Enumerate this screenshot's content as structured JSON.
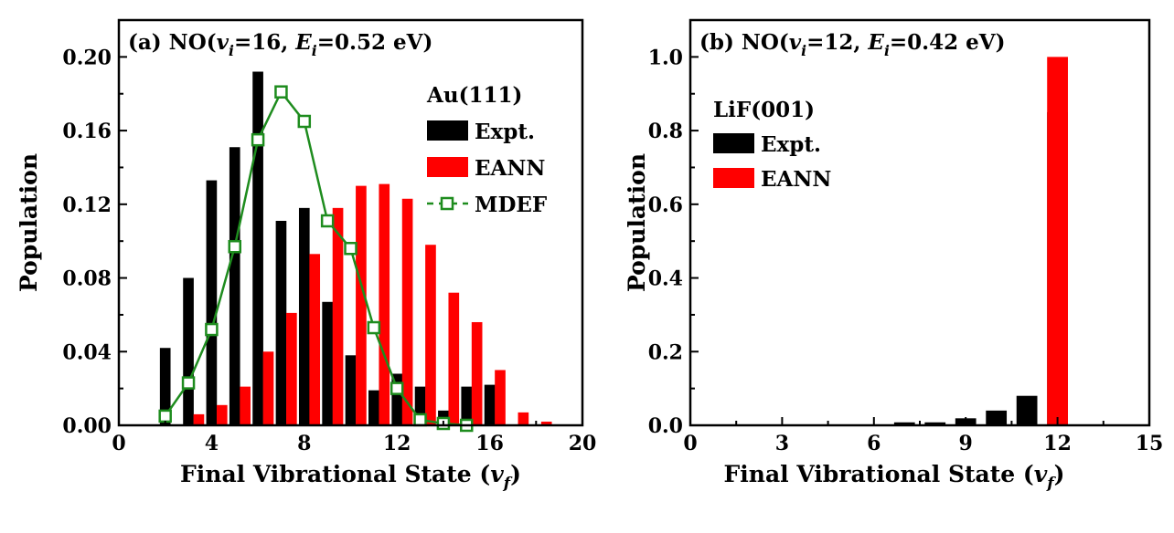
{
  "chart_data": [
    {
      "type": "bar",
      "panel": "(a)",
      "title_parts": [
        "(a) NO(",
        "v",
        "i",
        "=16, ",
        "E",
        "i",
        "=0.52 eV)"
      ],
      "xlabel_parts": [
        "Final Vibrational State (",
        "v",
        "f",
        ")"
      ],
      "ylabel": "Population",
      "xlim": [
        0,
        20
      ],
      "ylim": [
        0,
        0.22
      ],
      "xticks": [
        "0",
        "4",
        "8",
        "12",
        "16",
        "20"
      ],
      "yticks": [
        "0.00",
        "0.04",
        "0.08",
        "0.12",
        "0.16",
        "0.20"
      ],
      "legend_title": "Au(111)",
      "legend_placement": "top-right",
      "series": [
        {
          "name": "Expt.",
          "kind": "bar",
          "color": "#000000",
          "x": [
            2,
            3,
            4,
            5,
            6,
            7,
            8,
            9,
            10,
            11,
            12,
            13,
            14,
            15,
            16
          ],
          "values": [
            0.042,
            0.08,
            0.133,
            0.151,
            0.192,
            0.111,
            0.118,
            0.067,
            0.038,
            0.019,
            0.028,
            0.021,
            0.008,
            0.021,
            0.022
          ]
        },
        {
          "name": "EANN",
          "kind": "bar",
          "color": "#ff0000",
          "x": [
            3,
            4,
            5,
            6,
            7,
            8,
            9,
            10,
            11,
            12,
            13,
            14,
            15,
            16,
            17,
            18
          ],
          "values": [
            0.006,
            0.011,
            0.021,
            0.04,
            0.061,
            0.093,
            0.118,
            0.13,
            0.131,
            0.123,
            0.098,
            0.072,
            0.056,
            0.03,
            0.007,
            0.002
          ]
        },
        {
          "name": "MDEF",
          "kind": "line",
          "color": "#1e8c1e",
          "x": [
            2,
            3,
            4,
            5,
            6,
            7,
            8,
            9,
            10,
            11,
            12,
            13,
            14,
            15
          ],
          "values": [
            0.005,
            0.023,
            0.052,
            0.097,
            0.155,
            0.181,
            0.165,
            0.111,
            0.096,
            0.053,
            0.02,
            0.003,
            0.001,
            0.0
          ]
        }
      ]
    },
    {
      "type": "bar",
      "panel": "(b)",
      "title_parts": [
        "(b) NO(",
        "v",
        "i",
        "=12, ",
        "E",
        "i",
        "=0.42 eV)"
      ],
      "xlabel_parts": [
        "Final Vibrational State (",
        "v",
        "f",
        ")"
      ],
      "ylabel": "Population",
      "xlim": [
        0,
        15
      ],
      "ylim": [
        0,
        1.1
      ],
      "xticks": [
        "0",
        "3",
        "6",
        "9",
        "12",
        "15"
      ],
      "yticks": [
        "0.0",
        "0.2",
        "0.4",
        "0.6",
        "0.8",
        "1.0"
      ],
      "legend_title": "LiF(001)",
      "legend_placement": "top-left",
      "series": [
        {
          "name": "Expt.",
          "kind": "bar",
          "color": "#000000",
          "x": [
            7,
            8,
            9,
            10,
            11,
            12
          ],
          "values": [
            0.008,
            0.008,
            0.019,
            0.04,
            0.08,
            0.85
          ]
        },
        {
          "name": "EANN",
          "kind": "bar",
          "color": "#ff0000",
          "x": [
            12
          ],
          "values": [
            1.0
          ]
        }
      ]
    }
  ]
}
